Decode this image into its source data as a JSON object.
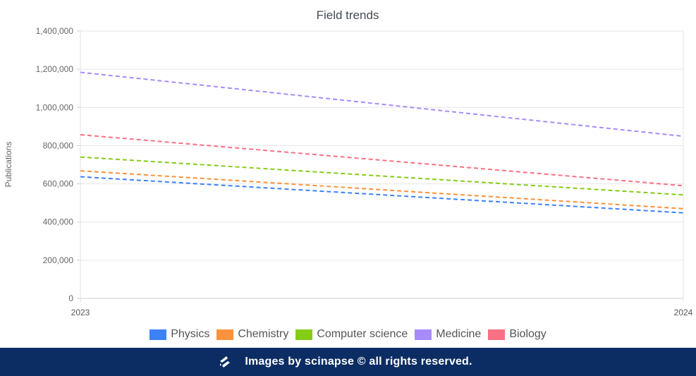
{
  "chart_data": {
    "type": "line",
    "title": "Field trends",
    "xlabel": "",
    "ylabel": "Publications",
    "x": [
      "2023",
      "2024"
    ],
    "ylim": [
      0,
      1400000
    ],
    "yticks": [
      "0",
      "200,000",
      "400,000",
      "600,000",
      "800,000",
      "1,000,000",
      "1,200,000",
      "1,400,000"
    ],
    "ytick_values": [
      0,
      200000,
      400000,
      600000,
      800000,
      1000000,
      1200000,
      1400000
    ],
    "grid": true,
    "legend_position": "bottom",
    "line_style": "dashed",
    "series": [
      {
        "name": "Physics",
        "color": "#3b82f6",
        "values": [
          637000,
          448000
        ]
      },
      {
        "name": "Chemistry",
        "color": "#fb923c",
        "values": [
          668000,
          470000
        ]
      },
      {
        "name": "Computer science",
        "color": "#84cc16",
        "values": [
          740000,
          542000
        ]
      },
      {
        "name": "Medicine",
        "color": "#a78bfa",
        "values": [
          1184000,
          849000
        ]
      },
      {
        "name": "Biology",
        "color": "#f87185",
        "values": [
          857000,
          590000
        ]
      }
    ]
  },
  "footer": {
    "logo_icon": "scinapse-logo-icon",
    "text": "Images by scinapse © all rights reserved."
  }
}
